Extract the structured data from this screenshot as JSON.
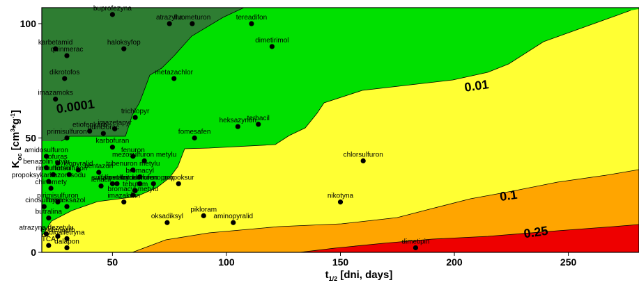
{
  "chart_data": {
    "type": "scatter",
    "xlabel": {
      "main": "t",
      "sub": "1/2",
      "rest": " [dni, days]"
    },
    "ylabel": {
      "main": "K",
      "sub": "oc",
      "rest1": " [cm",
      "sup1": "3",
      "mid": "*g",
      "sup2": "-1",
      "rest2": "]"
    },
    "xlim": [
      19,
      281
    ],
    "ylim": [
      0,
      107
    ],
    "x_ticks": [
      50,
      100,
      150,
      200,
      250
    ],
    "y_ticks": [
      0,
      50,
      100
    ],
    "zone_colors": [
      "#2e7d32",
      "#00e000",
      "#ffff33",
      "#ffa500",
      "#ee0000"
    ],
    "contour_labels": [
      {
        "text": "0.0001",
        "x": 34,
        "y": 62
      },
      {
        "text": "0.01",
        "x": 210,
        "y": 71
      },
      {
        "text": "0.1",
        "x": 224,
        "y": 23
      },
      {
        "text": "0.25",
        "x": 236,
        "y": 7
      }
    ],
    "points": [
      {
        "name": "buprofezyna",
        "x": 50,
        "y": 104
      },
      {
        "name": "atrazyna",
        "x": 75,
        "y": 100
      },
      {
        "name": "fluometuron",
        "x": 85,
        "y": 100
      },
      {
        "name": "tereadifon",
        "x": 111,
        "y": 100
      },
      {
        "name": "karbetamid",
        "x": 25,
        "y": 89
      },
      {
        "name": "quinmerac",
        "x": 30,
        "y": 86
      },
      {
        "name": "haloksyfop",
        "x": 55,
        "y": 89
      },
      {
        "name": "dimetirimol",
        "x": 120,
        "y": 90
      },
      {
        "name": "dikrotofos",
        "x": 29,
        "y": 76
      },
      {
        "name": "metazachlor",
        "x": 77,
        "y": 76
      },
      {
        "name": "imazamoks",
        "x": 25,
        "y": 67
      },
      {
        "name": "trichlopyr",
        "x": 60,
        "y": 59
      },
      {
        "name": "heksazynon",
        "x": 105,
        "y": 55
      },
      {
        "name": "terbacil",
        "x": 114,
        "y": 56
      },
      {
        "name": "primisulfuron",
        "x": 30,
        "y": 50
      },
      {
        "name": "etiofenkarb",
        "x": 40,
        "y": 53
      },
      {
        "name": "imazetapyr",
        "x": 51,
        "y": 54
      },
      {
        "name": "quinclorac",
        "x": 46,
        "y": 52
      },
      {
        "name": "fomesafen",
        "x": 86,
        "y": 50
      },
      {
        "name": "karbofuran",
        "x": 50,
        "y": 46
      },
      {
        "name": "amidosulfuron",
        "x": 21,
        "y": 42
      },
      {
        "name": "fenuron",
        "x": 59,
        "y": 42
      },
      {
        "name": "mezosulfuron metylu",
        "x": 64,
        "y": 40
      },
      {
        "name": "chlorsulfuron",
        "x": 160,
        "y": 40
      },
      {
        "name": "ofuras",
        "x": 26,
        "y": 39
      },
      {
        "name": "benazolin etylu",
        "x": 21,
        "y": 37
      },
      {
        "name": "klopyralid",
        "x": 35,
        "y": 36
      },
      {
        "name": "metsulfuron",
        "x": 31,
        "y": 34
      },
      {
        "name": "bentazon",
        "x": 44,
        "y": 35
      },
      {
        "name": "tribenuron metylu",
        "x": 59,
        "y": 36
      },
      {
        "name": "rimsulfuron",
        "x": 24,
        "y": 34
      },
      {
        "name": "bromacyl",
        "x": 62,
        "y": 33
      },
      {
        "name": "propoksykarbazon sodu",
        "x": 22,
        "y": 31
      },
      {
        "name": "sulfametazyn",
        "x": 50,
        "y": 30
      },
      {
        "name": "lenacil",
        "x": 45,
        "y": 29
      },
      {
        "name": "sulfosulfuron",
        "x": 52,
        "y": 30
      },
      {
        "name": "tritosulfuron",
        "x": 62,
        "y": 30
      },
      {
        "name": "klorofenoprop",
        "x": 68,
        "y": 30
      },
      {
        "name": "propoksur",
        "x": 79,
        "y": 30
      },
      {
        "name": "tebutam",
        "x": 60,
        "y": 27
      },
      {
        "name": "chinomety",
        "x": 23,
        "y": 28
      },
      {
        "name": "bromacyl metylu",
        "x": 59,
        "y": 25
      },
      {
        "name": "nikotyna",
        "x": 150,
        "y": 22
      },
      {
        "name": "cinosulfuron",
        "x": 20,
        "y": 20
      },
      {
        "name": "pirimisulfuron",
        "x": 26,
        "y": 22
      },
      {
        "name": "hymeksazol",
        "x": 30,
        "y": 20
      },
      {
        "name": "imazakwin",
        "x": 55,
        "y": 22
      },
      {
        "name": "butralina",
        "x": 22,
        "y": 15
      },
      {
        "name": "pikloram",
        "x": 90,
        "y": 16
      },
      {
        "name": "aminopyralid",
        "x": 103,
        "y": 13
      },
      {
        "name": "oksadiksyl",
        "x": 74,
        "y": 13
      },
      {
        "name": "atrazyna dezetylu",
        "x": 21,
        "y": 8
      },
      {
        "name": "etiofencarb",
        "x": 26,
        "y": 7
      },
      {
        "name": "bioalletryna",
        "x": 30,
        "y": 6
      },
      {
        "name": "TCA",
        "x": 22,
        "y": 3
      },
      {
        "name": "dalapon",
        "x": 30,
        "y": 2
      },
      {
        "name": "dimetipin",
        "x": 183,
        "y": 2
      }
    ]
  }
}
